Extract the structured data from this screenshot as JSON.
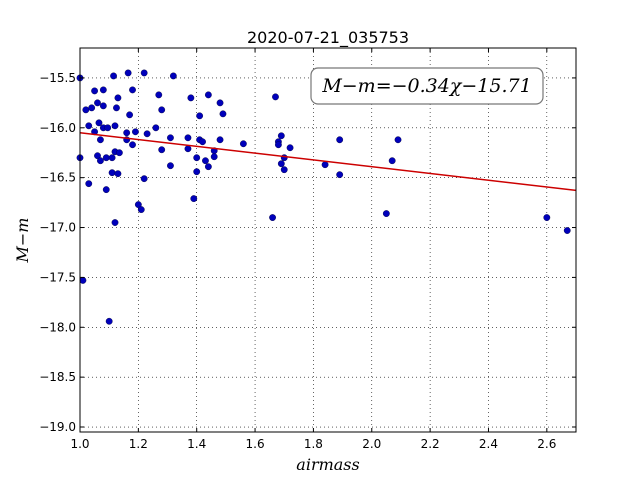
{
  "chart_data": {
    "type": "scatter",
    "title": "2020-07-21_035753",
    "xlabel": "airmass",
    "ylabel": "M−m",
    "annotation": "M−m=−0.34χ−15.71",
    "xlim": [
      1.0,
      2.7
    ],
    "ylim": [
      -19.05,
      -15.2
    ],
    "y_inverted": true,
    "grid": true,
    "x_ticks": [
      1.0,
      1.2,
      1.4,
      1.6,
      1.8,
      2.0,
      2.2,
      2.4,
      2.6
    ],
    "x_tick_labels": [
      "1.0",
      "1.2",
      "1.4",
      "1.6",
      "1.8",
      "2.0",
      "2.2",
      "2.4",
      "2.6"
    ],
    "y_ticks": [
      -15.5,
      -16.0,
      -16.5,
      -17.0,
      -17.5,
      -18.0,
      -18.5,
      -19.0
    ],
    "y_tick_labels": [
      "−15.5",
      "−16.0",
      "−16.5",
      "−17.0",
      "−17.5",
      "−18.0",
      "−18.5",
      "−19.0"
    ],
    "fit": {
      "slope": -0.34,
      "intercept": -15.71,
      "color": "#cc0000"
    },
    "point_color": "#0000bb",
    "points": [
      [
        1.0,
        -15.5
      ],
      [
        1.0,
        -16.3
      ],
      [
        1.01,
        -17.53
      ],
      [
        1.02,
        -15.82
      ],
      [
        1.03,
        -15.98
      ],
      [
        1.03,
        -16.56
      ],
      [
        1.04,
        -15.8
      ],
      [
        1.05,
        -15.63
      ],
      [
        1.05,
        -16.04
      ],
      [
        1.06,
        -15.75
      ],
      [
        1.06,
        -16.28
      ],
      [
        1.065,
        -15.95
      ],
      [
        1.07,
        -16.12
      ],
      [
        1.07,
        -16.33
      ],
      [
        1.08,
        -15.62
      ],
      [
        1.08,
        -15.78
      ],
      [
        1.08,
        -16.0
      ],
      [
        1.09,
        -16.62
      ],
      [
        1.09,
        -16.3
      ],
      [
        1.095,
        -16.0
      ],
      [
        1.1,
        -17.94
      ],
      [
        1.11,
        -16.3
      ],
      [
        1.11,
        -16.45
      ],
      [
        1.115,
        -15.48
      ],
      [
        1.12,
        -15.98
      ],
      [
        1.12,
        -16.24
      ],
      [
        1.12,
        -16.95
      ],
      [
        1.125,
        -15.8
      ],
      [
        1.13,
        -16.46
      ],
      [
        1.135,
        -16.25
      ],
      [
        1.13,
        -15.7
      ],
      [
        1.16,
        -16.05
      ],
      [
        1.16,
        -16.12
      ],
      [
        1.165,
        -15.45
      ],
      [
        1.17,
        -15.87
      ],
      [
        1.18,
        -15.62
      ],
      [
        1.18,
        -16.17
      ],
      [
        1.19,
        -16.04
      ],
      [
        1.2,
        -16.77
      ],
      [
        1.21,
        -16.82
      ],
      [
        1.22,
        -15.45
      ],
      [
        1.22,
        -16.51
      ],
      [
        1.23,
        -16.06
      ],
      [
        1.26,
        -16.0
      ],
      [
        1.27,
        -15.67
      ],
      [
        1.28,
        -15.82
      ],
      [
        1.28,
        -16.22
      ],
      [
        1.31,
        -16.1
      ],
      [
        1.31,
        -16.38
      ],
      [
        1.32,
        -15.48
      ],
      [
        1.37,
        -16.1
      ],
      [
        1.37,
        -16.21
      ],
      [
        1.38,
        -15.7
      ],
      [
        1.39,
        -16.71
      ],
      [
        1.4,
        -16.3
      ],
      [
        1.4,
        -16.44
      ],
      [
        1.41,
        -16.12
      ],
      [
        1.41,
        -15.88
      ],
      [
        1.42,
        -16.14
      ],
      [
        1.43,
        -16.33
      ],
      [
        1.44,
        -16.39
      ],
      [
        1.44,
        -15.67
      ],
      [
        1.46,
        -16.23
      ],
      [
        1.46,
        -16.29
      ],
      [
        1.48,
        -15.75
      ],
      [
        1.48,
        -16.12
      ],
      [
        1.49,
        -15.86
      ],
      [
        1.56,
        -16.16
      ],
      [
        1.66,
        -16.9
      ],
      [
        1.67,
        -15.69
      ],
      [
        1.68,
        -16.14
      ],
      [
        1.68,
        -16.17
      ],
      [
        1.69,
        -16.08
      ],
      [
        1.69,
        -16.36
      ],
      [
        1.7,
        -16.42
      ],
      [
        1.7,
        -16.3
      ],
      [
        1.72,
        -16.2
      ],
      [
        1.84,
        -16.37
      ],
      [
        1.89,
        -16.12
      ],
      [
        1.89,
        -16.47
      ],
      [
        2.05,
        -16.86
      ],
      [
        2.07,
        -16.33
      ],
      [
        2.09,
        -16.12
      ],
      [
        2.6,
        -16.9
      ],
      [
        2.67,
        -17.03
      ]
    ]
  }
}
